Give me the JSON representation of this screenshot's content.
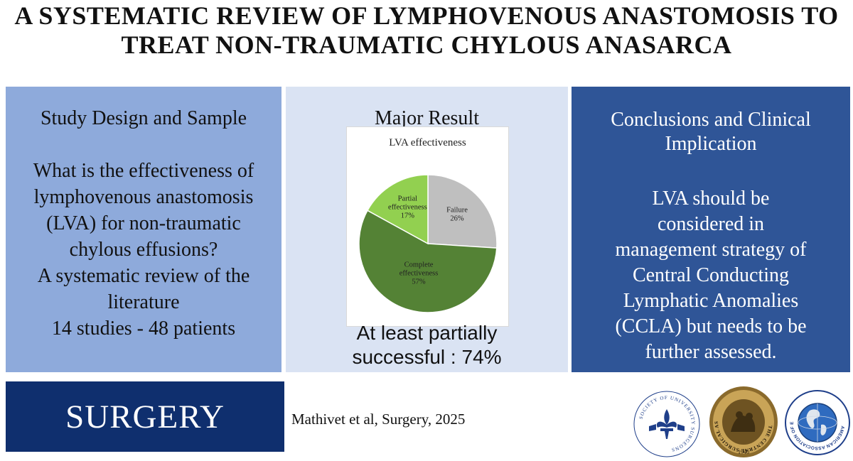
{
  "title": {
    "line1": "A SYSTEMATIC REVIEW OF LYMPHOVENOUS ANASTOMOSIS TO",
    "line2": "TREAT NON-TRAUMATIC CHYLOUS ANASARCA"
  },
  "left_panel": {
    "heading": "Study Design and Sample",
    "lines": [
      "What is the effectiveness of",
      "lymphovenous anastomosis",
      "(LVA) for non-traumatic",
      "chylous effusions?",
      "A systematic review of the",
      "literature",
      "14 studies - 48 patients"
    ]
  },
  "middle_panel": {
    "heading": "Major Result",
    "footer_lines": [
      "At least partially",
      "successful : 74%"
    ]
  },
  "chart_data": {
    "type": "pie",
    "title": "LVA effectiveness",
    "slices": [
      {
        "label": "Failure",
        "label2": "",
        "value": 26,
        "text": "26%",
        "color": "#bfbfbf"
      },
      {
        "label": "Complete",
        "label2": "effectiveness",
        "value": 57,
        "text": "57%",
        "color": "#548235"
      },
      {
        "label": "Partial",
        "label2": "effectiveness",
        "value": 17,
        "text": "17%",
        "color": "#92d050"
      }
    ]
  },
  "right_panel": {
    "heading_lines": [
      "Conclusions and Clinical",
      "Implication"
    ],
    "lines": [
      "LVA should be",
      "considered in",
      "management strategy of",
      "Central Conducting",
      "Lymphatic Anomalies",
      "(CCLA) but needs to be",
      "further assessed."
    ]
  },
  "footer": {
    "journal": "SURGERY",
    "citation": "Mathivet et al, Surgery, 2025"
  },
  "logos": {
    "suas_text": "SOCIETY OF UNIVERSITY SURGEONS",
    "central_text": "THE CENTRAL SURGICAL ASSOCIATION",
    "central_year": "1940",
    "aaes_text": "AMERICAN ASSOCIATION OF ENDOCRINE SURGEONS"
  }
}
